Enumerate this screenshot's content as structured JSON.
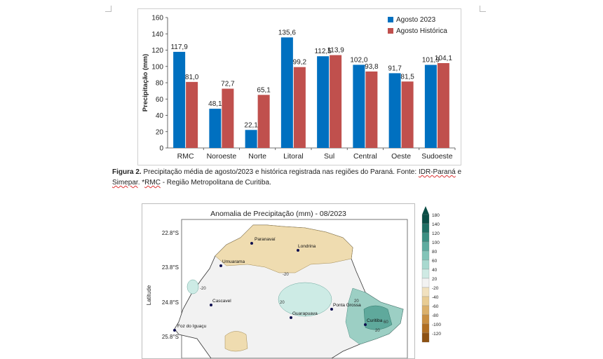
{
  "figure2": {
    "chart_data": {
      "type": "bar",
      "title": "",
      "ylabel": "Precipitação (mm)",
      "xlabel": "",
      "ylim": [
        0,
        160
      ],
      "yticks": [
        0,
        20,
        40,
        60,
        80,
        100,
        120,
        140,
        160
      ],
      "categories": [
        "RMC",
        "Noroeste",
        "Norte",
        "Litoral",
        "Sul",
        "Central",
        "Oeste",
        "Sudoeste"
      ],
      "series": [
        {
          "name": "Agosto 2023",
          "color": "#0070c0",
          "values": [
            117.9,
            48.1,
            22.1,
            135.6,
            112.5,
            102.0,
            91.7,
            101.9
          ],
          "labels": [
            "117,9",
            "48,1",
            "22,1",
            "135,6",
            "112,5",
            "102,0",
            "91,7",
            "101,9"
          ]
        },
        {
          "name": "Agosto Histórica",
          "color": "#c0504d",
          "values": [
            81.0,
            72.7,
            65.1,
            99.2,
            113.9,
            93.8,
            81.5,
            104.1
          ],
          "labels": [
            "81,0",
            "72,7",
            "65,1",
            "99,2",
            "113,9",
            "93,8",
            "81,5",
            "104,1"
          ]
        }
      ],
      "legend_position": "top-right"
    },
    "caption": {
      "prefix": "Figura 2.",
      "text_1": " Precipitação média de agosto/2023 e histórica registrada nas regiões do Paraná. Fonte: ",
      "source_1": "IDR-Paraná",
      "text_2": " e ",
      "source_2": "Simepar",
      "text_3": ". *",
      "abbr": "RMC",
      "text_4": " - Região Metropolitana de Curitiba."
    }
  },
  "anomaly_map": {
    "title": "Anomalia de Precipitação (mm) - 08/2023",
    "axis_label": "Latitude",
    "lat_ticks": [
      "22.8°S",
      "23.8°S",
      "24.8°S",
      "25.8°S"
    ],
    "cities": [
      "Paranavaí",
      "Londrina",
      "Umuarama",
      "Cascavel",
      "Guarapuava",
      "Ponta Grossa",
      "Curitiba",
      "Foz do Iguaçu"
    ],
    "isolines": [
      "-20",
      "20",
      "-20",
      "20",
      "60",
      "20"
    ],
    "colorbar": {
      "ticks": [
        "180",
        "140",
        "120",
        "100",
        "80",
        "60",
        "40",
        "20",
        "-20",
        "-40",
        "-60",
        "-80",
        "-100",
        "-120"
      ],
      "colors": [
        "#0a4d45",
        "#1f6e63",
        "#3c8f82",
        "#5eaca0",
        "#83c4b8",
        "#a9d9cf",
        "#cfeae4",
        "#f2f2f2",
        "#f1e1bf",
        "#e8cc93",
        "#dbb06a",
        "#c98f41",
        "#b06e22",
        "#8d5112"
      ]
    }
  }
}
